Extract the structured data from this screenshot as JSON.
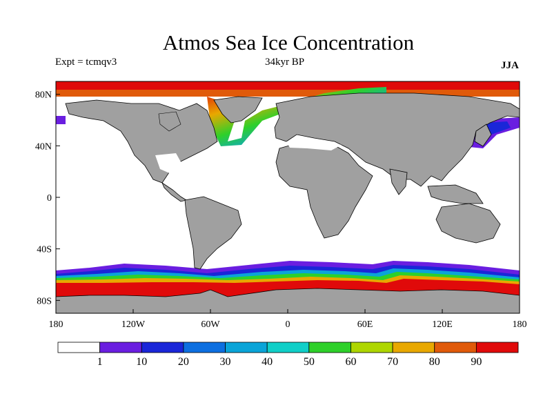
{
  "title": "Atmos Sea Ice Concentration",
  "experiment": "Expt = tcmqv3",
  "period": "34kyr BP",
  "season": "JJA",
  "map": {
    "projection": "cylindrical equidistant",
    "lon_range": [
      -180,
      180
    ],
    "lat_range": [
      -90,
      90
    ],
    "lat_tick_labels": [
      "80N",
      "40N",
      "0",
      "40S",
      "80S"
    ],
    "lat_tick_values": [
      80,
      40,
      0,
      -40,
      -80
    ],
    "lon_tick_labels": [
      "180",
      "120W",
      "60W",
      "0",
      "60E",
      "120E",
      "180"
    ],
    "lon_tick_values": [
      -180,
      -120,
      -60,
      0,
      60,
      120,
      180
    ],
    "land_color": "#a0a0a0",
    "open_water_color": "#ffffff"
  },
  "colorbar": {
    "levels": [
      "1",
      "10",
      "20",
      "30",
      "40",
      "50",
      "60",
      "70",
      "80",
      "90"
    ],
    "colors": [
      "#ffffff",
      "#6a1ee0",
      "#1a26d8",
      "#0d6fe0",
      "#0aa4d8",
      "#10cfc8",
      "#2ed02a",
      "#aed600",
      "#e8a800",
      "#e05a0a",
      "#e00a0a"
    ]
  }
}
